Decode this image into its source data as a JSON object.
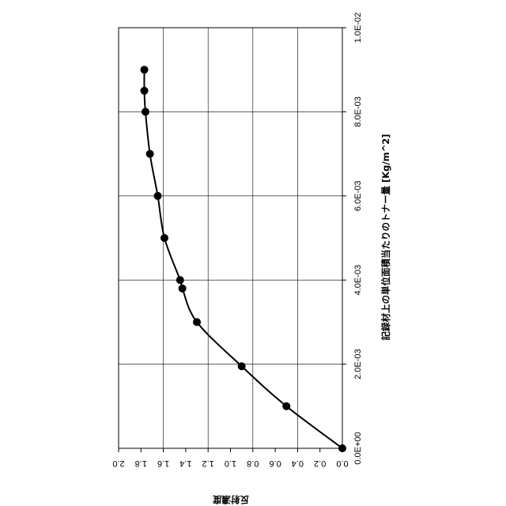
{
  "chart_data": {
    "type": "scatter",
    "orientation": "rotated-90-clockwise",
    "xlabel": "記録材上の単位面積当たりのトナー量 [Kg/m^2]",
    "ylabel": "反射濃度",
    "xlim": [
      0,
      0.01
    ],
    "ylim": [
      0,
      2.0
    ],
    "x_ticks": [
      "0.0E+00",
      "2.0E-03",
      "4.0E-03",
      "6.0E-03",
      "8.0E-03",
      "1.0E-02"
    ],
    "y_ticks": [
      "0.0",
      "0.2",
      "0.4",
      "0.6",
      "0.8",
      "1.0",
      "1.2",
      "1.4",
      "1.6",
      "1.8",
      "2.0"
    ],
    "grid": true,
    "series": [
      {
        "points": [
          [
            0.0,
            0.0
          ],
          [
            0.001,
            0.5
          ],
          [
            0.00195,
            0.9
          ],
          [
            0.003,
            1.3
          ],
          [
            0.0038,
            1.43
          ],
          [
            0.004,
            1.45
          ],
          [
            0.005,
            1.59
          ],
          [
            0.006,
            1.65
          ],
          [
            0.007,
            1.72
          ],
          [
            0.008,
            1.76
          ],
          [
            0.0085,
            1.77
          ],
          [
            0.009,
            1.77
          ]
        ],
        "trendline": true
      }
    ]
  }
}
